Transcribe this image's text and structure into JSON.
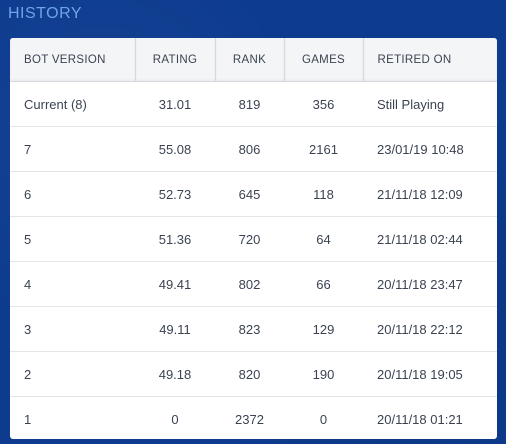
{
  "title": "HISTORY",
  "table": {
    "headers": [
      "BOT VERSION",
      "RATING",
      "RANK",
      "GAMES",
      "RETIRED ON"
    ],
    "rows": [
      [
        "Current (8)",
        "31.01",
        "819",
        "356",
        "Still Playing"
      ],
      [
        "7",
        "55.08",
        "806",
        "2161",
        "23/01/19 10:48"
      ],
      [
        "6",
        "52.73",
        "645",
        "118",
        "21/11/18 12:09"
      ],
      [
        "5",
        "51.36",
        "720",
        "64",
        "21/11/18 02:44"
      ],
      [
        "4",
        "49.41",
        "802",
        "66",
        "20/11/18 23:47"
      ],
      [
        "3",
        "49.11",
        "823",
        "129",
        "20/11/18 22:12"
      ],
      [
        "2",
        "49.18",
        "820",
        "190",
        "20/11/18 19:05"
      ],
      [
        "1",
        "0",
        "2372",
        "0",
        "20/11/18 01:21"
      ]
    ]
  },
  "colors": {
    "background": "#0d3b8e",
    "title": "#6ea4ea",
    "text": "#3b4352",
    "header_bg": "#f4f5f7"
  }
}
